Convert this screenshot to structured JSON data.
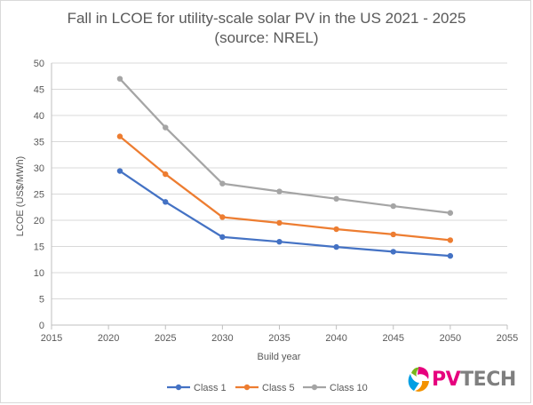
{
  "chart_data": {
    "type": "scatter",
    "mode": "lines+markers",
    "title": "Fall in LCOE for utility-scale solar PV in the US 2021 - 2025",
    "subtitle": "(source: NREL)",
    "xlabel": "Build year",
    "ylabel": "LCOE (US$/MWh)",
    "xlim": [
      2015,
      2055
    ],
    "ylim": [
      0,
      50
    ],
    "xticks": [
      2015,
      2020,
      2025,
      2030,
      2035,
      2040,
      2045,
      2050,
      2055
    ],
    "yticks": [
      0,
      5,
      10,
      15,
      20,
      25,
      30,
      35,
      40,
      45,
      50
    ],
    "grid": "horizontal",
    "legend_position": "bottom",
    "x": [
      2021,
      2025,
      2030,
      2035,
      2040,
      2045,
      2050
    ],
    "series": [
      {
        "name": "Class 1",
        "color": "#4472c4",
        "values": [
          29.4,
          23.5,
          16.8,
          15.9,
          14.9,
          14.0,
          13.2
        ]
      },
      {
        "name": "Class 5",
        "color": "#ed7d31",
        "values": [
          36.0,
          28.8,
          20.6,
          19.5,
          18.3,
          17.3,
          16.2
        ]
      },
      {
        "name": "Class 10",
        "color": "#a5a5a5",
        "values": [
          47.0,
          37.7,
          27.0,
          25.5,
          24.1,
          22.7,
          21.4
        ]
      }
    ]
  },
  "logo": {
    "text": "PVTECH",
    "icon": "pvtech-swirl-icon",
    "colors": [
      "#e6007e",
      "#f39200",
      "#009fe3",
      "#7ab51d"
    ]
  }
}
